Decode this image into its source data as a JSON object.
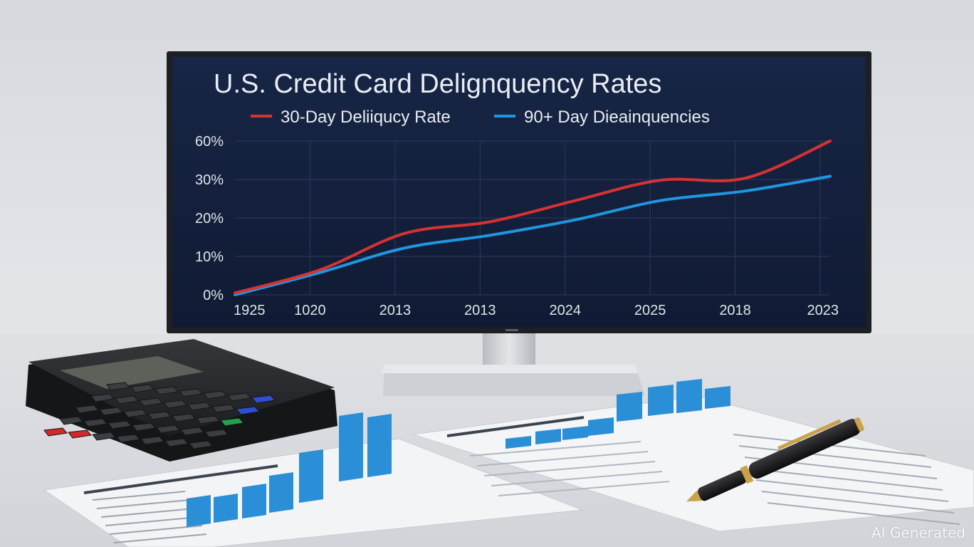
{
  "monitor_chart": {
    "title": "U.S. Credit Card Delignquency Rates",
    "legend": [
      {
        "label": "30-Day Deliiqucy Rate",
        "color": "#d63232"
      },
      {
        "label": "90+  Day Dieainquencies",
        "color": "#1f96e0"
      }
    ]
  },
  "chart_data": {
    "type": "line",
    "title": "U.S. Credit Card Delignquency Rates",
    "xlabel": "",
    "ylabel": "",
    "categories": [
      "1925",
      "1020",
      "2013",
      "2013",
      "2024",
      "2025",
      "2018",
      "2023"
    ],
    "y_tick_labels": [
      "0%",
      "10%",
      "20%",
      "30%",
      "60%"
    ],
    "y_tick_values": [
      0,
      10,
      20,
      30,
      60
    ],
    "grid": true,
    "legend_position": "top",
    "series": [
      {
        "name": "30-Day Deliiqucy Rate",
        "color": "#d63232",
        "values": [
          0.5,
          6.5,
          16,
          19,
          24.5,
          29.8,
          31,
          60
        ]
      },
      {
        "name": "90+  Day Dieainquencies",
        "color": "#1f96e0",
        "values": [
          0,
          5.8,
          12.2,
          15.5,
          19.5,
          24.5,
          27,
          32.5
        ]
      }
    ]
  },
  "colors": {
    "screen": "#13203c",
    "bezel": "#1e2024",
    "bar_blue": "#2a8fd6",
    "pen_gold": "#c9a24a",
    "calculator": "#26272a",
    "key_red": "#d12a2a",
    "key_blue": "#2f4fd0",
    "key_green": "#23a04a"
  },
  "watermark": "AI Generated"
}
